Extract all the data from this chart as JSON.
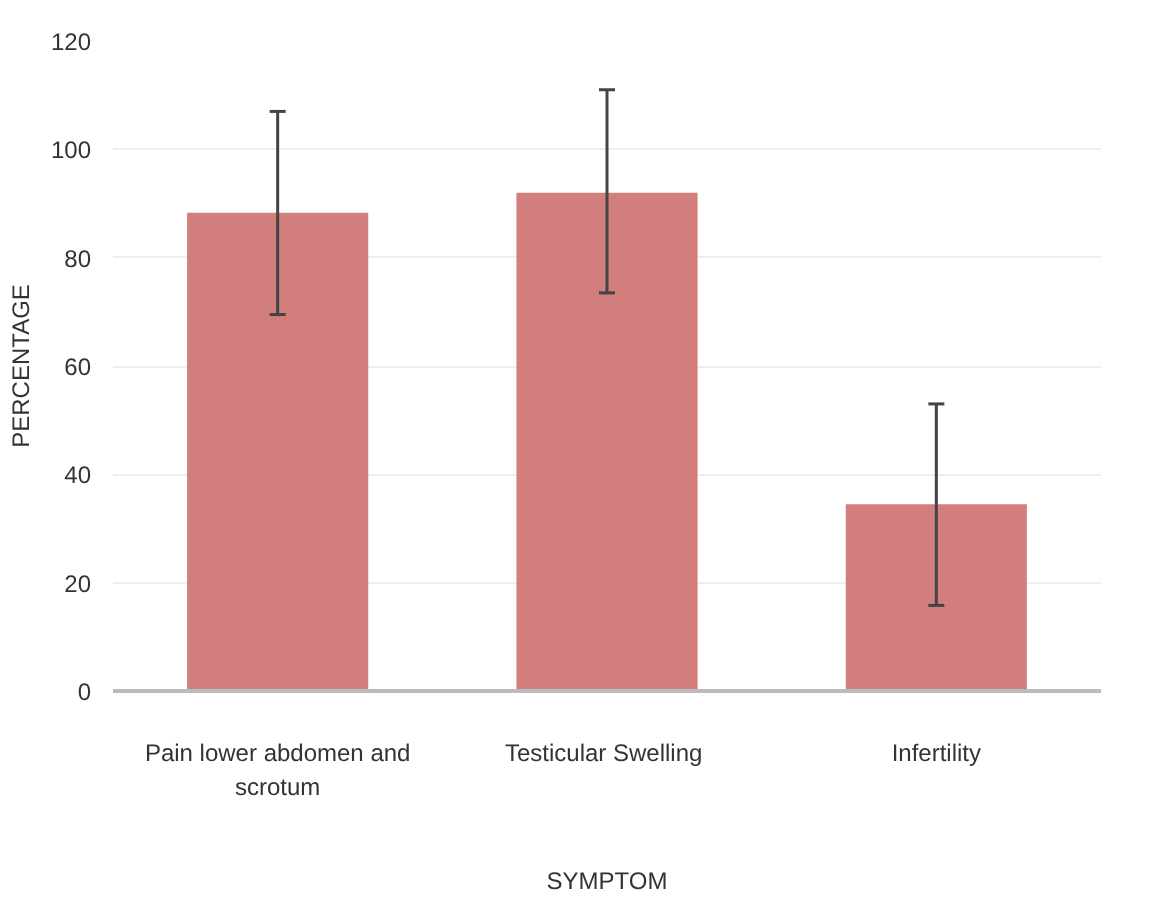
{
  "chart_data": {
    "type": "bar",
    "xlabel": "SYMPTOM",
    "ylabel": "PERCENTAGE",
    "categories": [
      "Pain lower abdomen and scrotum",
      "Testicular  Swelling",
      "Infertility"
    ],
    "values": [
      88.3,
      92,
      34.5
    ],
    "errors": [
      [
        69.5,
        107
      ],
      [
        73.5,
        111
      ],
      [
        15.8,
        53
      ]
    ],
    "color": "#d17e7c",
    "ylim": [
      0,
      120
    ],
    "yticks": [
      0,
      20,
      40,
      60,
      80,
      100,
      120
    ],
    "grid": "y"
  }
}
